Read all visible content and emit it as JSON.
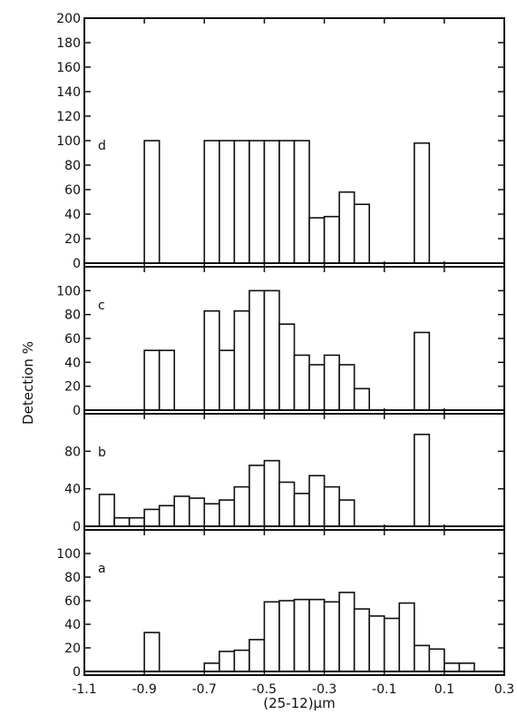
{
  "chart_data": [
    {
      "type": "bar",
      "panel_label": "d",
      "ylim": [
        0,
        200
      ],
      "yticks": [
        0,
        20,
        40,
        60,
        80,
        100,
        120,
        140,
        160,
        180,
        200
      ],
      "bin_width": 0.05,
      "bars": [
        {
          "x": -0.9,
          "value": 100
        },
        {
          "x": -0.7,
          "value": 100
        },
        {
          "x": -0.65,
          "value": 100
        },
        {
          "x": -0.6,
          "value": 100
        },
        {
          "x": -0.55,
          "value": 100
        },
        {
          "x": -0.5,
          "value": 100
        },
        {
          "x": -0.45,
          "value": 100
        },
        {
          "x": -0.4,
          "value": 100
        },
        {
          "x": -0.35,
          "value": 37
        },
        {
          "x": -0.3,
          "value": 38
        },
        {
          "x": -0.25,
          "value": 58
        },
        {
          "x": -0.2,
          "value": 48
        },
        {
          "x": 0.0,
          "value": 98
        }
      ]
    },
    {
      "type": "bar",
      "panel_label": "c",
      "ylim": [
        0,
        120
      ],
      "yticks": [
        0,
        20,
        40,
        60,
        80,
        100
      ],
      "bin_width": 0.05,
      "bars": [
        {
          "x": -0.9,
          "value": 50
        },
        {
          "x": -0.85,
          "value": 50
        },
        {
          "x": -0.7,
          "value": 83
        },
        {
          "x": -0.65,
          "value": 50
        },
        {
          "x": -0.6,
          "value": 83
        },
        {
          "x": -0.55,
          "value": 100
        },
        {
          "x": -0.5,
          "value": 100
        },
        {
          "x": -0.45,
          "value": 72
        },
        {
          "x": -0.4,
          "value": 46
        },
        {
          "x": -0.35,
          "value": 38
        },
        {
          "x": -0.3,
          "value": 46
        },
        {
          "x": -0.25,
          "value": 38
        },
        {
          "x": -0.2,
          "value": 18
        },
        {
          "x": 0.0,
          "value": 65
        }
      ]
    },
    {
      "type": "bar",
      "panel_label": "b",
      "ylim": [
        0,
        120
      ],
      "yticks": [
        0,
        40,
        80
      ],
      "bin_width": 0.05,
      "bars": [
        {
          "x": -1.05,
          "value": 34
        },
        {
          "x": -1.0,
          "value": 9
        },
        {
          "x": -0.95,
          "value": 9
        },
        {
          "x": -0.9,
          "value": 18
        },
        {
          "x": -0.85,
          "value": 22
        },
        {
          "x": -0.8,
          "value": 32
        },
        {
          "x": -0.75,
          "value": 30
        },
        {
          "x": -0.7,
          "value": 24
        },
        {
          "x": -0.65,
          "value": 28
        },
        {
          "x": -0.6,
          "value": 42
        },
        {
          "x": -0.55,
          "value": 65
        },
        {
          "x": -0.5,
          "value": 70
        },
        {
          "x": -0.45,
          "value": 47
        },
        {
          "x": -0.4,
          "value": 35
        },
        {
          "x": -0.35,
          "value": 54
        },
        {
          "x": -0.3,
          "value": 42
        },
        {
          "x": -0.25,
          "value": 28
        },
        {
          "x": 0.0,
          "value": 98
        }
      ]
    },
    {
      "type": "bar",
      "panel_label": "a",
      "ylim": [
        0,
        120
      ],
      "yticks": [
        0,
        20,
        40,
        60,
        80,
        100
      ],
      "bin_width": 0.05,
      "bars": [
        {
          "x": -0.9,
          "value": 33
        },
        {
          "x": -0.7,
          "value": 7
        },
        {
          "x": -0.65,
          "value": 17
        },
        {
          "x": -0.6,
          "value": 18
        },
        {
          "x": -0.55,
          "value": 27
        },
        {
          "x": -0.5,
          "value": 59
        },
        {
          "x": -0.45,
          "value": 60
        },
        {
          "x": -0.4,
          "value": 61
        },
        {
          "x": -0.35,
          "value": 61
        },
        {
          "x": -0.3,
          "value": 59
        },
        {
          "x": -0.25,
          "value": 67
        },
        {
          "x": -0.2,
          "value": 53
        },
        {
          "x": -0.15,
          "value": 47
        },
        {
          "x": -0.1,
          "value": 45
        },
        {
          "x": -0.05,
          "value": 58
        },
        {
          "x": 0.0,
          "value": 22
        },
        {
          "x": 0.05,
          "value": 19
        },
        {
          "x": 0.1,
          "value": 7
        },
        {
          "x": 0.15,
          "value": 7
        }
      ]
    }
  ],
  "x_axis": {
    "xlim": [
      -1.1,
      0.3
    ],
    "tick_values": [
      -1.1,
      -0.9,
      -0.7,
      -0.5,
      -0.3,
      -0.1,
      0.1,
      0.3
    ],
    "tick_labels": [
      "-1.1",
      "-0.9",
      "-0.7",
      "-0.5",
      "-0.3",
      "-0.1",
      "0.1",
      "0.3"
    ],
    "label": "(25-12)μm"
  },
  "y_axis_label": "Detection %"
}
